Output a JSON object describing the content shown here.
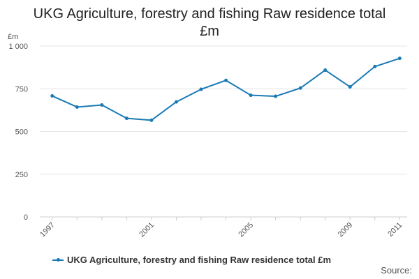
{
  "title": "UKG Agriculture, forestry and fishing Raw residence total £m",
  "source_label": "Source:",
  "accent_color": "#1a7ab5",
  "chart_data": {
    "type": "line",
    "title": "UKG Agriculture, forestry and fishing Raw residence total £m",
    "xlabel": "",
    "ylabel": "£m",
    "x": [
      1997,
      1998,
      1999,
      2000,
      2001,
      2002,
      2003,
      2004,
      2005,
      2006,
      2007,
      2008,
      2009,
      2010,
      2011
    ],
    "x_tick_labels": [
      "1997",
      "2001",
      "2005",
      "2009",
      "2011"
    ],
    "x_tick_values": [
      1997,
      2001,
      2005,
      2009,
      2011
    ],
    "y_ticks": [
      0,
      250,
      500,
      750,
      1000
    ],
    "y_tick_labels": [
      "0",
      "250",
      "500",
      "750",
      "1 000"
    ],
    "ylim": [
      0,
      1000
    ],
    "grid": true,
    "legend_position": "bottom",
    "series": [
      {
        "name": "UKG Agriculture, forestry and fishing Raw residence total £m",
        "color": "#1a7ab5",
        "values": [
          708,
          643,
          655,
          577,
          566,
          673,
          747,
          799,
          712,
          706,
          754,
          859,
          761,
          880,
          928
        ]
      }
    ]
  }
}
